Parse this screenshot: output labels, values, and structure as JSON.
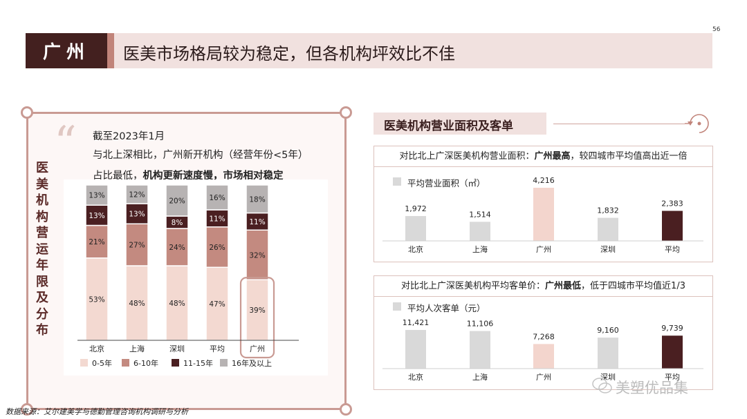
{
  "page_number": "56",
  "header": {
    "city": "广州",
    "title": "医美市场格局较为稳定，但各机构坪效比不佳"
  },
  "left_panel": {
    "vertical_title": "医美机构营运年限及分布",
    "quote_lines": [
      "截至2023年1月",
      "与北上深相比，广州新开机构（经营年份<5年）"
    ],
    "quote_line3_prefix": "占比最低，",
    "quote_line3_bold1": "机构更新速度慢",
    "quote_line3_sep": "，",
    "quote_line3_bold2": "市场相对稳定"
  },
  "right_panel": {
    "section_title": "医美机构营业面积及客单",
    "card1": {
      "heading_prefix": "对比北上广深医美机构营业面积：",
      "heading_bold": "广州最高",
      "heading_suffix": "，较四城市平均值高出近一倍",
      "legend": "平均营业面积（㎡）"
    },
    "card2": {
      "heading_prefix": "对比北上广深医美机构平均客单价：",
      "heading_bold": "广州最低",
      "heading_suffix": "，低于四城市平均值近1/3",
      "legend": "平均人次客单（元）"
    }
  },
  "watermark": "美塑优品集",
  "source": "数据来源：艾尔建美学与德勤管理咨询机构调研与分析",
  "colors": {
    "dark": "#43201f",
    "accent": "#c1847a",
    "pale": "#f3d5cd",
    "grey": "#bdb8b8",
    "header_bg": "#f1e1df",
    "frame": "#c99a93",
    "highlight_box": "#c99a93"
  },
  "chart_data": [
    {
      "type": "bar",
      "stacked": true,
      "orientation": "vertical",
      "categories": [
        "北京",
        "上海",
        "深圳",
        "平均",
        "广州"
      ],
      "series": [
        {
          "name": "0-5年",
          "values": [
            53,
            48,
            48,
            47,
            39
          ],
          "color": "#f3d9d1"
        },
        {
          "name": "6-10年",
          "values": [
            21,
            27,
            24,
            26,
            32
          ],
          "color": "#c38a80"
        },
        {
          "name": "11-15年",
          "values": [
            13,
            13,
            8,
            11,
            11
          ],
          "color": "#4a1f21"
        },
        {
          "name": "16年及以上",
          "values": [
            13,
            12,
            20,
            16,
            18
          ],
          "color": "#b7b3b3"
        }
      ],
      "value_suffix": "%",
      "highlight_category": "广州",
      "legend_position": "bottom",
      "ylim": [
        0,
        100
      ]
    },
    {
      "type": "bar",
      "categories": [
        "北京",
        "上海",
        "广州",
        "深圳",
        "平均"
      ],
      "values": [
        1972,
        1514,
        4216,
        1832,
        2383
      ],
      "labels": [
        "1,972",
        "1,514",
        "4,216",
        "1,832",
        "2,383"
      ],
      "colors": [
        "#d9d9d9",
        "#d9d9d9",
        "#f3d5cd",
        "#d9d9d9",
        "#4a1f21"
      ],
      "series_name": "平均营业面积（㎡）",
      "ylim": [
        0,
        4216
      ]
    },
    {
      "type": "bar",
      "categories": [
        "北京",
        "上海",
        "广州",
        "深圳",
        "平均"
      ],
      "values": [
        11421,
        11106,
        7268,
        9160,
        9739
      ],
      "labels": [
        "11,421",
        "11,106",
        "7,268",
        "9,160",
        "9,739"
      ],
      "colors": [
        "#d9d9d9",
        "#d9d9d9",
        "#f3d5cd",
        "#d9d9d9",
        "#4a1f21"
      ],
      "series_name": "平均人次客单（元）",
      "ylim": [
        0,
        11421
      ]
    }
  ]
}
